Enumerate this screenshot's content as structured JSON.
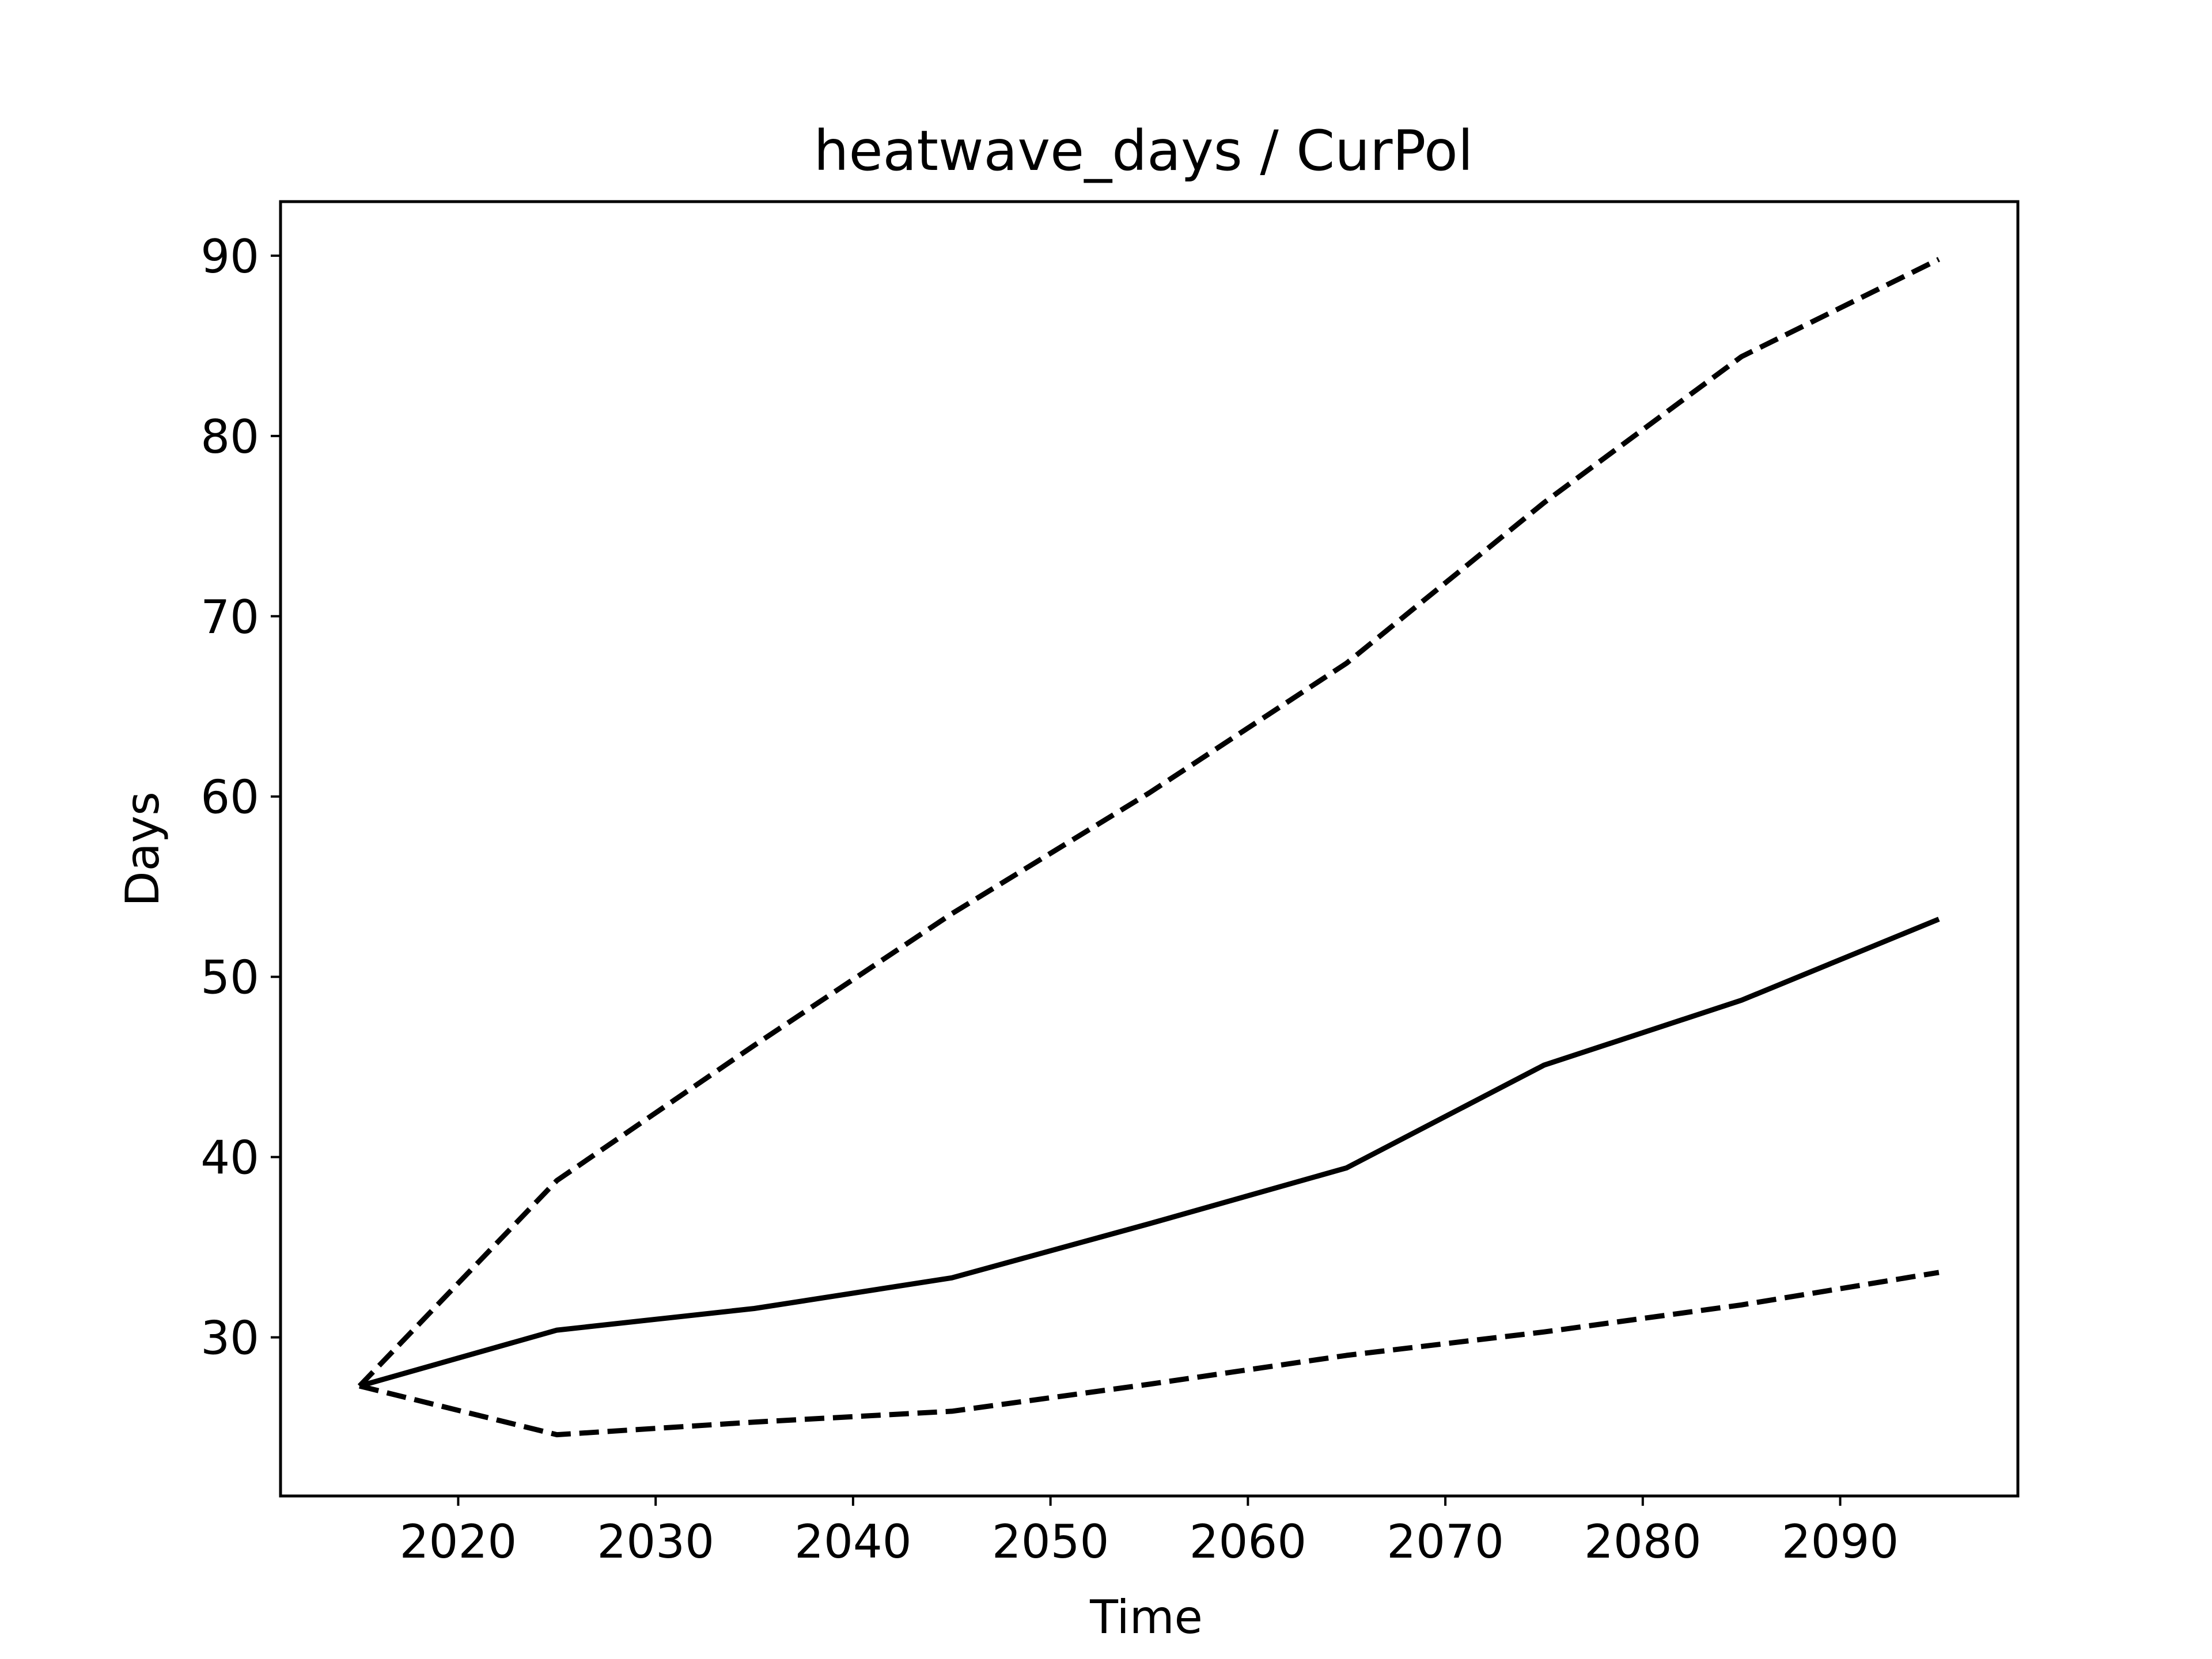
{
  "chart_data": {
    "type": "line",
    "title": "heatwave_days / CurPol",
    "xlabel": "Time",
    "ylabel": "Days",
    "xlim": [
      2011,
      2099
    ],
    "ylim": [
      21.2,
      93
    ],
    "xticks": [
      2020,
      2030,
      2040,
      2050,
      2060,
      2070,
      2080,
      2090
    ],
    "yticks": [
      30,
      40,
      50,
      60,
      70,
      80,
      90
    ],
    "grid": false,
    "legend": "none",
    "x": [
      2015,
      2025,
      2035,
      2045,
      2055,
      2065,
      2075,
      2085,
      2095
    ],
    "series": [
      {
        "style": "dashed",
        "color": "#000000",
        "values": [
          27.3,
          38.7,
          46.2,
          53.5,
          60.2,
          67.4,
          76.3,
          84.4,
          89.8
        ]
      },
      {
        "style": "solid",
        "color": "#000000",
        "values": [
          27.3,
          30.4,
          31.6,
          33.3,
          36.3,
          39.4,
          45.1,
          48.7,
          53.2
        ]
      },
      {
        "style": "dashed",
        "color": "#000000",
        "values": [
          27.3,
          24.6,
          25.3,
          25.9,
          27.4,
          29.0,
          30.3,
          31.8,
          33.6
        ]
      }
    ]
  }
}
